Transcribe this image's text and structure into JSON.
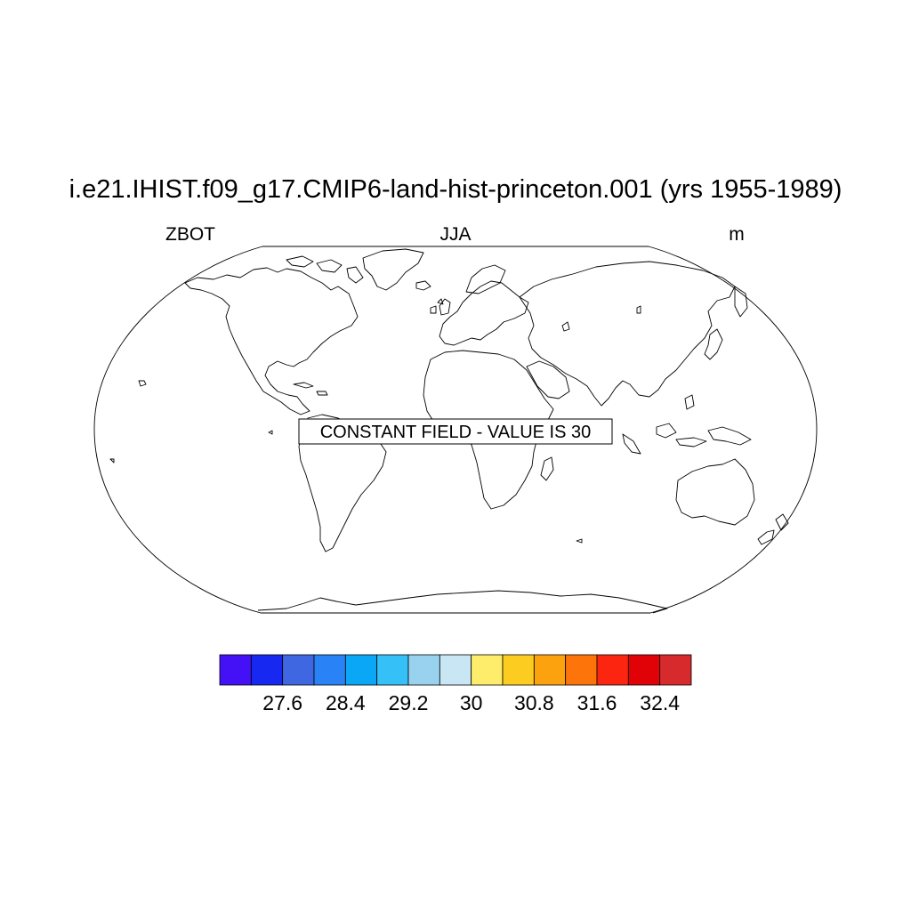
{
  "title": "i.e21.IHIST.f09_g17.CMIP6-land-hist-princeton.001 (yrs 1955-1989)",
  "left_string": "ZBOT",
  "center_string": "JJA",
  "right_string": "m",
  "message": "CONSTANT FIELD - VALUE IS 30",
  "colorbar": {
    "colors": [
      "#4410f6",
      "#1728f0",
      "#3e67e1",
      "#2a83f6",
      "#0aa7f7",
      "#35c0f7",
      "#98d2ef",
      "#c8e6f4",
      "#fded6b",
      "#fccd20",
      "#fca20f",
      "#fc740a",
      "#fc2510",
      "#e00206",
      "#d62a2c"
    ],
    "labels": [
      "27.6",
      "28.4",
      "29.2",
      "30",
      "30.8",
      "31.6",
      "32.4"
    ]
  },
  "chart_data": {
    "type": "map",
    "projection": "Robinson",
    "variable": "ZBOT",
    "season": "JJA",
    "units": "m",
    "constant_value": 30,
    "colorbar_ticks": [
      27.6,
      28.4,
      29.2,
      30,
      30.8,
      31.6,
      32.4
    ]
  }
}
